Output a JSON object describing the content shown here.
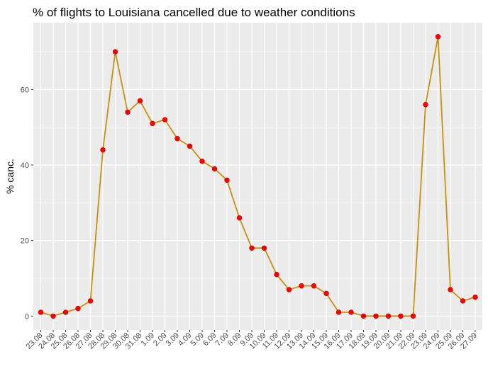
{
  "chart_data": {
    "type": "line",
    "title": "% of flights to Louisiana cancelled due to weather conditions",
    "xlabel": "",
    "ylabel": "% canc.",
    "categories": [
      "23.08",
      "24.08",
      "25.08",
      "26.08",
      "27.08",
      "28.08",
      "29.08",
      "30.08",
      "31.08",
      "1.09",
      "2.09",
      "3.09",
      "4.09",
      "5.09",
      "6.09",
      "7.09",
      "8.09",
      "9.09",
      "10.09",
      "11.09",
      "12.09",
      "13.09",
      "14.09",
      "15.09",
      "16.09",
      "17.09",
      "18.09",
      "19.09",
      "20.09",
      "21.09",
      "22.09",
      "23.09",
      "24.09",
      "25.09",
      "26.09",
      "27.09"
    ],
    "series": [
      {
        "values": [
          1,
          0,
          1,
          2,
          4,
          44,
          70,
          54,
          57,
          51,
          52,
          47,
          45,
          41,
          39,
          36,
          26,
          18,
          18,
          11,
          7,
          8,
          8,
          6,
          1,
          1,
          0,
          0,
          0,
          0,
          0,
          56,
          74,
          7,
          4,
          5
        ]
      }
    ],
    "ylim": [
      -3.7,
      77.7
    ],
    "yticks": [
      0,
      20,
      40,
      60
    ],
    "grid": true,
    "colors": {
      "line": "#C8900E",
      "point": "#FF0000",
      "point_outline": "#CC0000",
      "panel": "#EBEBEB",
      "grid": "#FFFFFF"
    }
  }
}
